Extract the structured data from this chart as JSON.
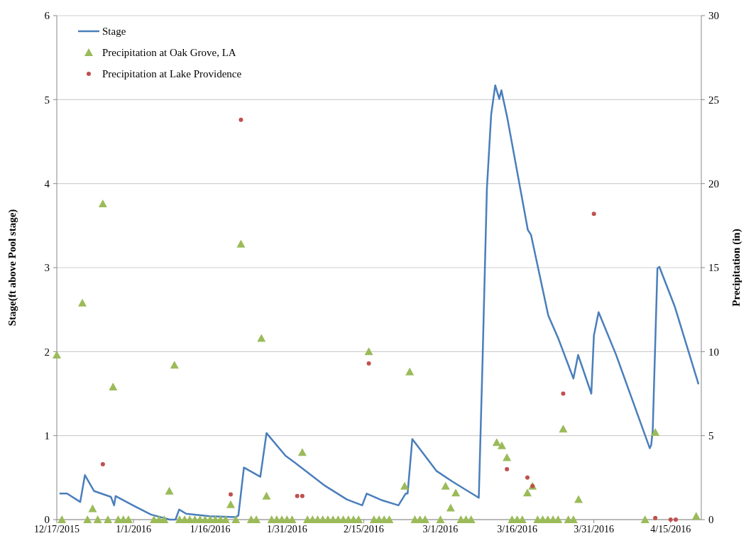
{
  "chart_data": {
    "type": "line",
    "xlabel": null,
    "ylabel": "Stage(ft above Pool stage)",
    "y2label": "Precipitation (in)",
    "legend": "top left",
    "grid": "y",
    "xlim": [
      "2015-12-17",
      "2016-04-21"
    ],
    "xticks": [
      {
        "value": "2015-12-17",
        "label": "12/17/2015"
      },
      {
        "value": "2016-01-01",
        "label": "1/1/2016"
      },
      {
        "value": "2016-01-16",
        "label": "1/16/2016"
      },
      {
        "value": "2016-01-31",
        "label": "1/31/2016"
      },
      {
        "value": "2016-02-15",
        "label": "2/15/2016"
      },
      {
        "value": "2016-03-01",
        "label": "3/1/2016"
      },
      {
        "value": "2016-03-16",
        "label": "3/16/2016"
      },
      {
        "value": "2016-03-31",
        "label": "3/31/2016"
      },
      {
        "value": "2016-04-15",
        "label": "4/15/2016"
      }
    ],
    "ylim": [
      0,
      6
    ],
    "yticks": [
      0,
      1,
      2,
      3,
      4,
      5,
      6
    ],
    "y2lim": [
      0,
      30
    ],
    "y2ticks": [
      0,
      5,
      10,
      15,
      20,
      25,
      30
    ],
    "series": [
      {
        "name": "Stage",
        "marker": "none",
        "color": "#4a7ebb",
        "x": [
          "2015-12-17T16:00",
          "2015-12-19",
          "2015-12-21T14:00",
          "2015-12-22T12:00",
          "2015-12-24T07:00",
          "2015-12-27T14:00",
          "2015-12-28T05:00",
          "2015-12-28T12:00",
          "2016-01-01T05:00",
          "2016-01-04T10:00",
          "2016-01-08T02:00",
          "2016-01-09T05:00",
          "2016-01-09T22:00",
          "2016-01-11T07:00",
          "2016-01-15T22:00",
          "2016-01-21",
          "2016-01-21T12:00",
          "2016-01-22T14:00",
          "2016-01-25T19:00",
          "2016-01-27",
          "2016-01-30T17:00",
          "2016-02-01T12:00",
          "2016-02-07T12:00",
          "2016-02-11T17:00",
          "2016-02-14T17:00",
          "2016-02-15T14:00",
          "2016-02-18T14:00",
          "2016-02-21T19:00",
          "2016-02-23T05:00",
          "2016-02-23T14:00",
          "2016-02-24T12:00",
          "2016-02-29T05:00",
          "2016-03-03T10:00",
          "2016-03-08T12:00",
          "2016-03-09T05:00",
          "2016-03-10T02:00",
          "2016-03-10T22:00",
          "2016-03-11T17:00",
          "2016-03-12T12:00",
          "2016-03-12T22:00",
          "2016-03-14T02:00",
          "2016-03-18T02:00",
          "2016-03-18T17:00",
          "2016-03-22T02:00",
          "2016-03-24T02:00",
          "2016-03-27",
          "2016-03-27T22:00",
          "2016-03-30T12:00",
          "2016-03-31",
          "2016-03-31T22:00",
          "2016-04-04T07:00",
          "2016-04-10T22:00",
          "2016-04-11T05:00",
          "2016-04-11T12:00",
          "2016-04-12T10:00",
          "2016-04-12T19:00",
          "2016-04-15T19:00",
          "2016-04-20T10:00"
        ],
        "values": [
          0.31,
          0.31,
          0.21,
          0.53,
          0.34,
          0.27,
          0.17,
          0.28,
          0.16,
          0.06,
          0,
          0,
          0.12,
          0.07,
          0.04,
          0.03,
          0.05,
          0.62,
          0.51,
          1.03,
          0.76,
          0.68,
          0.4,
          0.24,
          0.17,
          0.31,
          0.23,
          0.17,
          0.31,
          0.31,
          0.96,
          0.58,
          0.45,
          0.26,
          1.83,
          3.94,
          4.82,
          5.17,
          5.01,
          5.11,
          4.78,
          3.45,
          3.39,
          2.43,
          2.15,
          1.68,
          1.96,
          1.5,
          2.19,
          2.47,
          1.97,
          0.85,
          0.89,
          1.06,
          2.99,
          3.01,
          2.54,
          1.62
        ]
      },
      {
        "name": "Precipitation at Oak Grove, LA",
        "type": "scatter",
        "marker": "triangle",
        "axis": "y2",
        "color": "#9bbb59",
        "x": [
          "2015-12-17",
          "2015-12-18",
          "2015-12-22",
          "2015-12-23",
          "2015-12-24",
          "2015-12-25",
          "2015-12-26",
          "2015-12-27",
          "2015-12-28",
          "2015-12-29",
          "2015-12-30",
          "2015-12-31",
          "2016-01-05",
          "2016-01-06",
          "2016-01-07",
          "2016-01-08",
          "2016-01-09",
          "2016-01-10",
          "2016-01-11",
          "2016-01-12",
          "2016-01-13",
          "2016-01-14",
          "2016-01-15",
          "2016-01-16",
          "2016-01-17",
          "2016-01-18",
          "2016-01-19",
          "2016-01-20",
          "2016-01-21",
          "2016-01-22",
          "2016-01-24",
          "2016-01-25",
          "2016-01-26",
          "2016-01-27",
          "2016-01-28",
          "2016-01-29",
          "2016-01-30",
          "2016-01-31",
          "2016-02-01",
          "2016-02-03",
          "2016-02-04",
          "2016-02-05",
          "2016-02-06",
          "2016-02-07",
          "2016-02-08",
          "2016-02-09",
          "2016-02-10",
          "2016-02-11",
          "2016-02-12",
          "2016-02-13",
          "2016-02-14",
          "2016-02-16",
          "2016-02-17",
          "2016-02-18",
          "2016-02-19",
          "2016-02-20",
          "2016-02-23",
          "2016-02-24",
          "2016-02-25",
          "2016-02-26",
          "2016-02-27",
          "2016-03-01",
          "2016-03-02",
          "2016-03-03",
          "2016-03-04",
          "2016-03-05",
          "2016-03-06",
          "2016-03-07",
          "2016-03-12",
          "2016-03-13",
          "2016-03-14",
          "2016-03-15",
          "2016-03-16",
          "2016-03-17",
          "2016-03-18",
          "2016-03-19",
          "2016-03-20",
          "2016-03-21",
          "2016-03-22",
          "2016-03-23",
          "2016-03-24",
          "2016-03-25",
          "2016-03-26",
          "2016-03-27",
          "2016-03-28",
          "2016-04-10",
          "2016-04-12",
          "2016-04-20"
        ],
        "values": [
          9.8,
          0,
          12.9,
          0,
          0.65,
          0,
          18.8,
          0,
          7.9,
          0,
          0,
          0,
          0,
          0,
          0,
          1.7,
          9.2,
          0,
          0,
          0,
          0,
          0,
          0,
          0,
          0,
          0,
          0,
          0.9,
          0,
          16.4,
          0,
          0,
          10.8,
          1.4,
          0,
          0,
          0,
          0,
          0,
          4.0,
          0,
          0,
          0,
          0,
          0,
          0,
          0,
          0,
          0,
          0,
          0,
          10.0,
          0,
          0,
          0,
          0,
          2.0,
          8.8,
          0,
          0,
          0,
          0,
          2.0,
          0.7,
          1.6,
          0,
          0,
          0,
          4.6,
          4.4,
          3.7,
          0,
          0,
          0,
          1.6,
          2.0,
          0,
          0,
          0,
          0,
          0,
          5.4,
          0,
          0,
          1.2,
          0,
          5.2,
          0.2
        ]
      },
      {
        "name": "Precipitation at Lake Providence",
        "type": "scatter",
        "marker": "circle",
        "axis": "y2",
        "color": "#c0504d",
        "x": [
          "2015-12-26",
          "2016-01-20",
          "2016-01-22",
          "2016-02-02",
          "2016-02-03",
          "2016-02-16",
          "2016-03-14",
          "2016-03-18",
          "2016-03-19",
          "2016-03-25",
          "2016-03-31",
          "2016-04-12",
          "2016-04-15",
          "2016-04-16"
        ],
        "values": [
          3.3,
          1.5,
          23.8,
          1.4,
          1.4,
          9.3,
          3.0,
          2.5,
          2.0,
          7.5,
          18.2,
          0.1,
          0,
          0
        ]
      }
    ]
  }
}
